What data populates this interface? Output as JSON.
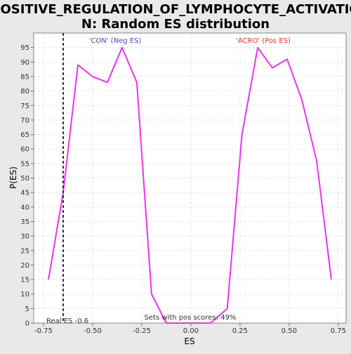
{
  "chart_data": {
    "type": "line",
    "title_lines": [
      "POSITIVE_REGULATION_OF_LYMPHOCYTE_ACTIVATIO",
      "N: Random ES distribution"
    ],
    "xlabel": "ES",
    "ylabel": "P(ES)",
    "xlim": [
      -0.8,
      0.79
    ],
    "ylim": [
      0,
      100
    ],
    "xticks": [
      -0.75,
      -0.5,
      -0.25,
      0.0,
      0.25,
      0.5,
      0.75
    ],
    "xtick_labels": [
      "-0.75",
      "-0.50",
      "-0.25",
      "0.00",
      "0.25",
      "0.50",
      "0.75"
    ],
    "yticks": [
      0,
      5,
      10,
      15,
      20,
      25,
      30,
      35,
      40,
      45,
      50,
      55,
      60,
      65,
      70,
      75,
      80,
      85,
      90,
      95
    ],
    "ytick_labels": [
      "0",
      "5",
      "10",
      "15",
      "20",
      "25",
      "30",
      "35",
      "40",
      "45",
      "50",
      "55",
      "60",
      "65",
      "70",
      "75",
      "80",
      "85",
      "90",
      "95"
    ],
    "grid": true,
    "series": [
      {
        "color": "#ee33ee",
        "x": [
          -0.725,
          -0.65,
          -0.575,
          -0.5,
          -0.425,
          -0.35,
          -0.275,
          -0.2,
          -0.125,
          -0.05,
          0.025,
          0.1,
          0.185,
          0.26,
          0.34,
          0.415,
          0.49,
          0.565,
          0.64,
          0.715
        ],
        "y": [
          15,
          45,
          89,
          85,
          83,
          95,
          83,
          10,
          0,
          0,
          0,
          0,
          5,
          65,
          95,
          88,
          91,
          77,
          56,
          15
        ]
      }
    ],
    "vline": {
      "x": -0.65,
      "color": "#333333"
    },
    "annotations": {
      "neg_label": {
        "text": "'CON' (Neg ES)",
        "color": "#4444cc"
      },
      "pos_label": {
        "text": "'ACRO' (Pos ES)",
        "color": "#ee3333"
      },
      "real_es": {
        "text": "Real ES -0.6",
        "color": "#333333"
      },
      "pos_scores": {
        "text": "Sets with pos scores: 49%",
        "color": "#333333"
      }
    }
  }
}
